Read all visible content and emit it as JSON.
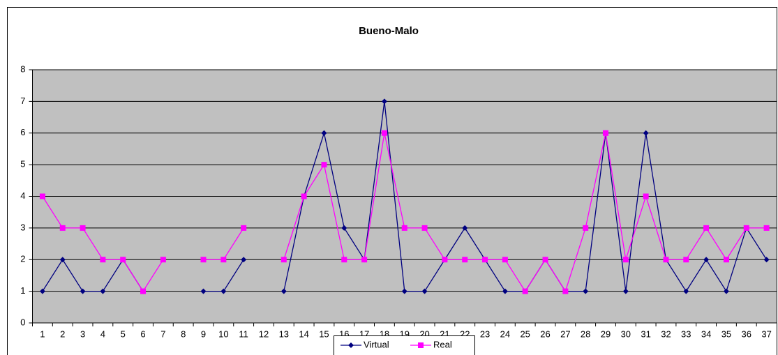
{
  "chart_data": {
    "type": "line",
    "title": "Bueno-Malo",
    "categories": [
      1,
      2,
      3,
      4,
      5,
      6,
      7,
      8,
      9,
      10,
      11,
      12,
      13,
      14,
      15,
      16,
      17,
      18,
      19,
      20,
      21,
      22,
      23,
      24,
      25,
      26,
      27,
      28,
      29,
      30,
      31,
      32,
      33,
      34,
      35,
      36,
      37
    ],
    "series": [
      {
        "name": "Virtual",
        "color": "#000080",
        "marker": "diamond",
        "values": [
          1,
          2,
          1,
          1,
          2,
          1,
          null,
          null,
          1,
          1,
          2,
          null,
          1,
          4,
          6,
          3,
          2,
          7,
          1,
          1,
          2,
          3,
          2,
          1,
          1,
          2,
          1,
          1,
          6,
          1,
          6,
          2,
          1,
          2,
          1,
          3,
          2
        ]
      },
      {
        "name": "Real",
        "color": "#ff00ff",
        "marker": "square",
        "values": [
          4,
          3,
          3,
          2,
          2,
          1,
          2,
          null,
          2,
          2,
          3,
          null,
          2,
          4,
          5,
          2,
          2,
          6,
          3,
          3,
          2,
          2,
          2,
          2,
          1,
          2,
          1,
          3,
          6,
          2,
          4,
          2,
          2,
          3,
          2,
          3,
          3
        ]
      }
    ],
    "ylim": [
      0,
      8
    ],
    "yticks": [
      0,
      1,
      2,
      3,
      4,
      5,
      6,
      7,
      8
    ],
    "grid": true,
    "legend": "bottom"
  }
}
